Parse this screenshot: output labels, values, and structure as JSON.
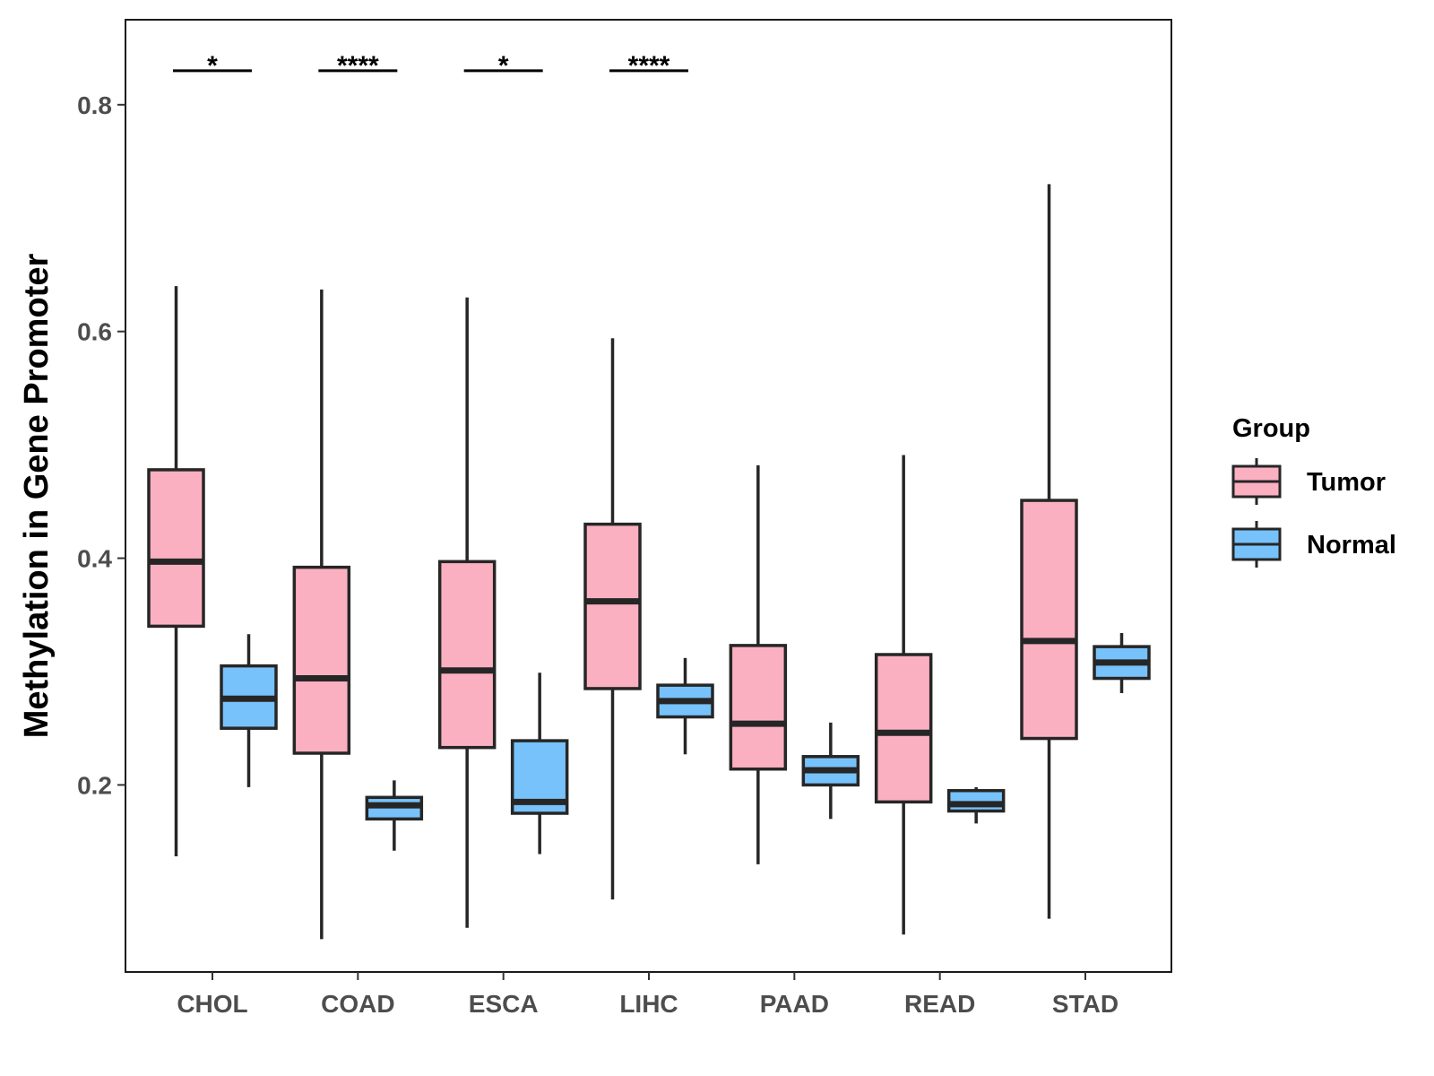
{
  "chart_data": {
    "type": "boxplot",
    "title": "",
    "xlabel": "",
    "ylabel": "Methylation in Gene Promoter",
    "ylim": [
      0.035,
      0.875
    ],
    "yticks": [
      0.2,
      0.4,
      0.6,
      0.8
    ],
    "ytick_labels": [
      "0.2",
      "0.4",
      "0.6",
      "0.8"
    ],
    "categories": [
      "CHOL",
      "COAD",
      "ESCA",
      "LIHC",
      "PAAD",
      "READ",
      "STAD"
    ],
    "legend": {
      "title": "Group",
      "position": "right",
      "entries": [
        {
          "name": "Tumor",
          "color": "#FBB0C1"
        },
        {
          "name": "Normal",
          "color": "#77C2FA"
        }
      ]
    },
    "series": [
      {
        "name": "Tumor",
        "color": "#FBB0C1",
        "boxes": [
          {
            "category": "CHOL",
            "min": 0.137,
            "q1": 0.34,
            "median": 0.397,
            "q3": 0.478,
            "max": 0.64
          },
          {
            "category": "COAD",
            "min": 0.064,
            "q1": 0.228,
            "median": 0.294,
            "q3": 0.392,
            "max": 0.637
          },
          {
            "category": "ESCA",
            "min": 0.074,
            "q1": 0.233,
            "median": 0.301,
            "q3": 0.397,
            "max": 0.63
          },
          {
            "category": "LIHC",
            "min": 0.099,
            "q1": 0.285,
            "median": 0.362,
            "q3": 0.43,
            "max": 0.594
          },
          {
            "category": "PAAD",
            "min": 0.13,
            "q1": 0.214,
            "median": 0.254,
            "q3": 0.323,
            "max": 0.482
          },
          {
            "category": "READ",
            "min": 0.068,
            "q1": 0.185,
            "median": 0.246,
            "q3": 0.315,
            "max": 0.491
          },
          {
            "category": "STAD",
            "min": 0.082,
            "q1": 0.241,
            "median": 0.327,
            "q3": 0.451,
            "max": 0.73
          }
        ]
      },
      {
        "name": "Normal",
        "color": "#77C2FA",
        "boxes": [
          {
            "category": "CHOL",
            "min": 0.198,
            "q1": 0.25,
            "median": 0.276,
            "q3": 0.305,
            "max": 0.333
          },
          {
            "category": "COAD",
            "min": 0.142,
            "q1": 0.17,
            "median": 0.182,
            "q3": 0.189,
            "max": 0.204
          },
          {
            "category": "ESCA",
            "min": 0.139,
            "q1": 0.175,
            "median": 0.185,
            "q3": 0.239,
            "max": 0.299
          },
          {
            "category": "LIHC",
            "min": 0.227,
            "q1": 0.26,
            "median": 0.274,
            "q3": 0.288,
            "max": 0.312
          },
          {
            "category": "PAAD",
            "min": 0.17,
            "q1": 0.2,
            "median": 0.213,
            "q3": 0.225,
            "max": 0.255
          },
          {
            "category": "READ",
            "min": 0.166,
            "q1": 0.177,
            "median": 0.183,
            "q3": 0.195,
            "max": 0.198
          },
          {
            "category": "STAD",
            "min": 0.281,
            "q1": 0.294,
            "median": 0.308,
            "q3": 0.322,
            "max": 0.334
          }
        ]
      }
    ],
    "significance": [
      {
        "category": "CHOL",
        "label": "*"
      },
      {
        "category": "COAD",
        "label": "****"
      },
      {
        "category": "ESCA",
        "label": "*"
      },
      {
        "category": "LIHC",
        "label": "****"
      }
    ],
    "significance_y": 0.83,
    "grid": false
  }
}
